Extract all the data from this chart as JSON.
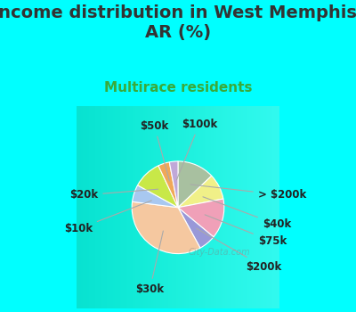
{
  "title": "Income distribution in West Memphis,\nAR (%)",
  "subtitle": "Multirace residents",
  "background_color": "#00FFFF",
  "chart_bg_left": "#c8e8d8",
  "chart_bg_right": "#ffffff",
  "watermark": "City-Data.com",
  "title_color": "#333333",
  "subtitle_color": "#3aaa3a",
  "slices": [
    {
      "label": "> $200k",
      "value": 13,
      "color": "#a8c0a0"
    },
    {
      "label": "$40k",
      "value": 9,
      "color": "#f0f088"
    },
    {
      "label": "$75k",
      "value": 14,
      "color": "#f0a0b8"
    },
    {
      "label": "$200k",
      "value": 6,
      "color": "#9898d8"
    },
    {
      "label": "$30k",
      "value": 35,
      "color": "#f5c8a0"
    },
    {
      "label": "$10k",
      "value": 6,
      "color": "#a8c8f0"
    },
    {
      "label": "$20k",
      "value": 10,
      "color": "#c8e848"
    },
    {
      "label": "$50k",
      "value": 4,
      "color": "#f0a858"
    },
    {
      "label": "$100k",
      "value": 3,
      "color": "#c0a8d8"
    }
  ],
  "label_fontsize": 8.5,
  "title_fontsize": 14,
  "subtitle_fontsize": 11
}
